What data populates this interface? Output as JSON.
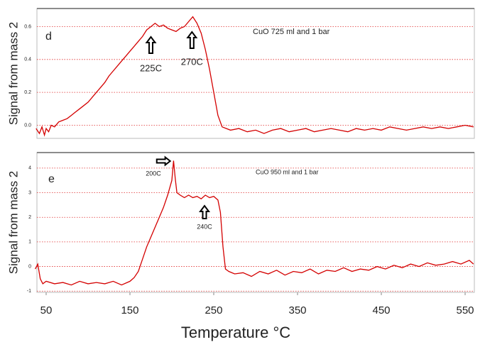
{
  "chart_data": [
    {
      "type": "line",
      "ylabel": "Signal from mass 2",
      "panel_label": "d",
      "note": "CuO 725 ml and 1 bar",
      "annotations": [
        "225C",
        "270C"
      ],
      "xlim": [
        39,
        561
      ],
      "ylim": [
        -0.08,
        0.71
      ],
      "yticks": [
        {
          "value": 0,
          "label": "0.0"
        },
        {
          "value": 0.2,
          "label": "0.2"
        },
        {
          "value": 0.4,
          "label": "0.4"
        },
        {
          "value": 0.6,
          "label": "0.6"
        }
      ],
      "grid": true,
      "series": [
        {
          "color": "#d40000",
          "x": [
            38,
            42,
            45,
            48,
            50,
            53,
            56,
            60,
            65,
            70,
            75,
            80,
            85,
            90,
            95,
            100,
            105,
            110,
            115,
            120,
            125,
            130,
            135,
            140,
            145,
            150,
            155,
            160,
            165,
            170,
            175,
            180,
            185,
            190,
            195,
            200,
            205,
            210,
            215,
            220,
            225,
            230,
            235,
            240,
            245,
            250,
            255,
            260,
            265,
            270,
            280,
            290,
            300,
            310,
            320,
            330,
            340,
            350,
            360,
            370,
            380,
            390,
            400,
            410,
            420,
            430,
            440,
            450,
            460,
            470,
            480,
            490,
            500,
            510,
            520,
            530,
            540,
            550,
            560
          ],
          "values": [
            -0.02,
            -0.05,
            -0.01,
            -0.06,
            -0.02,
            -0.04,
            0.0,
            -0.01,
            0.02,
            0.03,
            0.04,
            0.06,
            0.08,
            0.1,
            0.12,
            0.14,
            0.17,
            0.2,
            0.23,
            0.26,
            0.3,
            0.33,
            0.36,
            0.39,
            0.42,
            0.45,
            0.48,
            0.51,
            0.54,
            0.58,
            0.6,
            0.62,
            0.6,
            0.61,
            0.59,
            0.58,
            0.57,
            0.59,
            0.6,
            0.63,
            0.66,
            0.62,
            0.56,
            0.46,
            0.34,
            0.2,
            0.06,
            -0.01,
            -0.02,
            -0.03,
            -0.02,
            -0.04,
            -0.03,
            -0.05,
            -0.03,
            -0.02,
            -0.04,
            -0.03,
            -0.02,
            -0.04,
            -0.03,
            -0.02,
            -0.03,
            -0.04,
            -0.02,
            -0.03,
            -0.02,
            -0.03,
            -0.01,
            -0.02,
            -0.03,
            -0.02,
            -0.01,
            -0.02,
            -0.01,
            -0.02,
            -0.01,
            0.0,
            -0.01
          ]
        }
      ]
    },
    {
      "type": "line",
      "ylabel": "Signal from mass 2",
      "panel_label": "e",
      "note": "CuO 950 ml and 1 bar",
      "annotations": [
        "200C",
        "240C"
      ],
      "xlabel": "Temperature °C",
      "xlim": [
        39,
        561
      ],
      "ylim": [
        -1.05,
        4.63
      ],
      "xticks": [
        50,
        150,
        250,
        350,
        450,
        550
      ],
      "yticks": [
        -1,
        0,
        1,
        2,
        3,
        4
      ],
      "grid": true,
      "series": [
        {
          "color": "#d40000",
          "x": [
            37,
            40,
            43,
            46,
            50,
            60,
            70,
            80,
            90,
            100,
            110,
            120,
            130,
            140,
            150,
            155,
            160,
            165,
            170,
            175,
            180,
            185,
            190,
            195,
            200,
            202,
            204,
            206,
            210,
            215,
            220,
            225,
            230,
            235,
            240,
            245,
            250,
            255,
            258,
            261,
            264,
            268,
            275,
            285,
            295,
            305,
            315,
            325,
            335,
            345,
            355,
            365,
            375,
            385,
            395,
            405,
            415,
            425,
            435,
            445,
            455,
            465,
            475,
            485,
            495,
            505,
            515,
            525,
            535,
            545,
            555,
            560
          ],
          "values": [
            -0.1,
            0.1,
            -0.5,
            -0.7,
            -0.6,
            -0.7,
            -0.65,
            -0.75,
            -0.6,
            -0.7,
            -0.65,
            -0.7,
            -0.6,
            -0.75,
            -0.6,
            -0.45,
            -0.2,
            0.3,
            0.8,
            1.2,
            1.6,
            2.0,
            2.4,
            2.9,
            3.5,
            4.3,
            3.6,
            3.0,
            2.9,
            2.8,
            2.9,
            2.8,
            2.85,
            2.75,
            2.9,
            2.8,
            2.85,
            2.7,
            2.2,
            0.8,
            -0.1,
            -0.2,
            -0.3,
            -0.25,
            -0.4,
            -0.2,
            -0.3,
            -0.15,
            -0.35,
            -0.2,
            -0.25,
            -0.1,
            -0.3,
            -0.15,
            -0.2,
            -0.05,
            -0.2,
            -0.1,
            -0.15,
            0.0,
            -0.1,
            0.05,
            -0.05,
            0.1,
            0.0,
            0.15,
            0.05,
            0.1,
            0.2,
            0.1,
            0.25,
            0.1
          ]
        }
      ]
    }
  ]
}
